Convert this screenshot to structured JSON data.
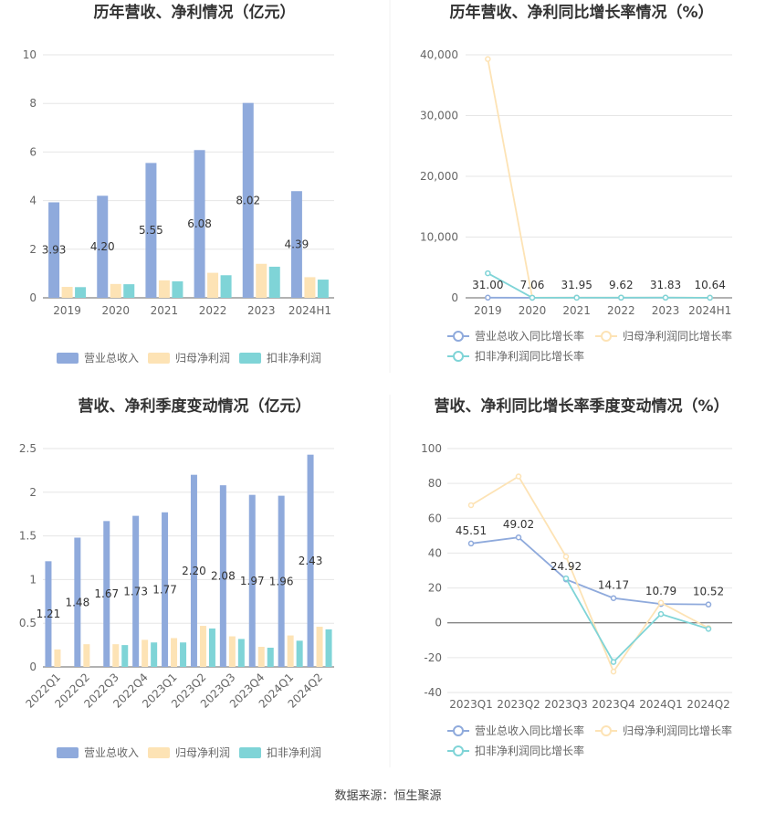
{
  "source_label": "数据来源：恒生聚源",
  "chart_data": [
    {
      "type": "bar",
      "title": "历年营收、净利情况（亿元）",
      "categories": [
        "2019",
        "2020",
        "2021",
        "2022",
        "2023",
        "2024H1"
      ],
      "ylim": [
        0,
        10
      ],
      "yticks": [
        0,
        2,
        4,
        6,
        8,
        10
      ],
      "series": [
        {
          "name": "营业总收入",
          "color": "#8faadc",
          "values": [
            3.93,
            4.2,
            5.55,
            6.08,
            8.02,
            4.39
          ]
        },
        {
          "name": "归母净利润",
          "color": "#fde3b5",
          "values": [
            0.45,
            0.57,
            0.72,
            1.03,
            1.4,
            0.85
          ]
        },
        {
          "name": "扣非净利润",
          "color": "#7fd4d7",
          "values": [
            0.44,
            0.56,
            0.68,
            0.93,
            1.28,
            0.75
          ]
        }
      ],
      "labels": [
        "3.93",
        "4.20",
        "5.55",
        "6.08",
        "8.02",
        "4.39"
      ]
    },
    {
      "type": "line",
      "title": "历年营收、净利同比增长率情况（%）",
      "categories": [
        "2019",
        "2020",
        "2021",
        "2022",
        "2023",
        "2024H1"
      ],
      "ylim": [
        0,
        40000
      ],
      "yticks": [
        0,
        10000,
        20000,
        30000,
        40000
      ],
      "ytick_labels": [
        "0",
        "10,000",
        "20,000",
        "30,000",
        "40,000"
      ],
      "series": [
        {
          "name": "营业总收入同比增长率",
          "color": "#8faadc",
          "values": [
            31.0,
            7.06,
            31.95,
            9.62,
            31.83,
            10.64
          ]
        },
        {
          "name": "归母净利润同比增长率",
          "color": "#fde3b5",
          "values": [
            39300,
            30,
            27,
            43,
            36,
            20
          ]
        },
        {
          "name": "扣非净利润同比增长率",
          "color": "#7fd4d7",
          "values": [
            4050,
            25,
            22,
            40,
            35,
            18
          ]
        }
      ],
      "labels": [
        "31.00",
        "7.06",
        "31.95",
        "9.62",
        "31.83",
        "10.64"
      ]
    },
    {
      "type": "bar",
      "title": "营收、净利季度变动情况（亿元）",
      "categories": [
        "2022Q1",
        "2022Q2",
        "2022Q3",
        "2022Q4",
        "2023Q1",
        "2023Q2",
        "2023Q3",
        "2023Q4",
        "2024Q1",
        "2024Q2"
      ],
      "ylim": [
        0,
        2.5
      ],
      "yticks": [
        0,
        0.5,
        1,
        1.5,
        2,
        2.5
      ],
      "series": [
        {
          "name": "营业总收入",
          "color": "#8faadc",
          "values": [
            1.21,
            1.48,
            1.67,
            1.73,
            1.77,
            2.2,
            2.08,
            1.97,
            1.96,
            2.43
          ]
        },
        {
          "name": "归母净利润",
          "color": "#fde3b5",
          "values": [
            0.2,
            0.26,
            0.26,
            0.31,
            0.33,
            0.47,
            0.35,
            0.23,
            0.36,
            0.46
          ]
        },
        {
          "name": "扣非净利润",
          "color": "#7fd4d7",
          "values": [
            0.0,
            0.0,
            0.25,
            0.28,
            0.28,
            0.44,
            0.32,
            0.22,
            0.3,
            0.43
          ]
        }
      ],
      "labels": [
        "1.21",
        "1.48",
        "1.67",
        "1.73",
        "1.77",
        "2.20",
        "2.08",
        "1.97",
        "1.96",
        "2.43"
      ]
    },
    {
      "type": "line",
      "title": "营收、净利同比增长率季度变动情况（%）",
      "categories": [
        "2023Q1",
        "2023Q2",
        "2023Q3",
        "2023Q4",
        "2024Q1",
        "2024Q2"
      ],
      "ylim": [
        -40,
        100
      ],
      "yticks": [
        -40,
        -20,
        0,
        20,
        40,
        60,
        80,
        100
      ],
      "series": [
        {
          "name": "营业总收入同比增长率",
          "color": "#8faadc",
          "values": [
            45.51,
            49.02,
            24.92,
            14.17,
            10.79,
            10.52
          ]
        },
        {
          "name": "归母净利润同比增长率",
          "color": "#fde3b5",
          "values": [
            67.5,
            84.0,
            38.0,
            -28.0,
            11.5,
            -3.0
          ]
        },
        {
          "name": "扣非净利润同比增长率",
          "color": "#7fd4d7",
          "values": [
            null,
            null,
            25.5,
            -22.5,
            5.0,
            -3.5
          ]
        }
      ],
      "labels": [
        "45.51",
        "49.02",
        "24.92",
        "14.17",
        "10.79",
        "10.52"
      ]
    }
  ]
}
